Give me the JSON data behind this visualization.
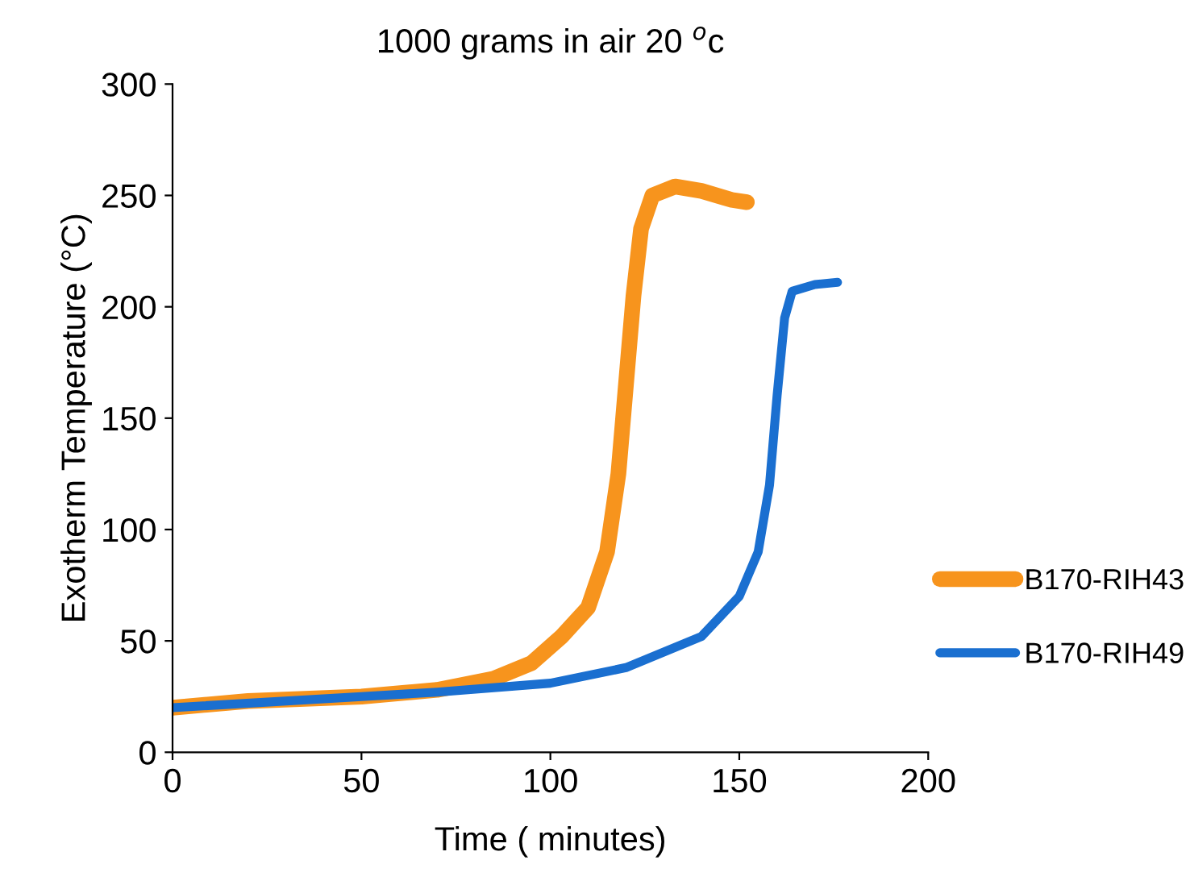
{
  "chart_data": {
    "type": "line",
    "title": "1000 grams in air 20 $^{o}$c",
    "xlabel": "Time ( minutes)",
    "ylabel": "Exotherm Temperature (°C)",
    "xlim": [
      0,
      200
    ],
    "xticks": [
      0,
      50,
      100,
      150,
      200
    ],
    "ylim": [
      0,
      300
    ],
    "yticks": [
      0,
      50,
      100,
      150,
      200,
      250,
      300
    ],
    "grid": false,
    "legend": "right",
    "marker": "none",
    "line_style": "solid",
    "series": [
      {
        "name": "B170-RIH43",
        "color": "#f7941d",
        "x": [
          0,
          20,
          50,
          70,
          85,
          95,
          103,
          110,
          115,
          118,
          120,
          122,
          124,
          127,
          133,
          140,
          148,
          152
        ],
        "values": [
          20,
          23,
          25,
          28,
          33,
          40,
          52,
          65,
          90,
          125,
          165,
          205,
          235,
          250,
          254,
          252,
          248,
          247
        ]
      },
      {
        "name": "B170-RIH49",
        "color": "#1a6fd0",
        "x": [
          0,
          50,
          70,
          100,
          120,
          140,
          150,
          155,
          158,
          160,
          162,
          164,
          170,
          176
        ],
        "values": [
          20,
          25,
          27,
          31,
          38,
          52,
          70,
          90,
          120,
          160,
          195,
          207,
          210,
          211
        ]
      }
    ]
  }
}
